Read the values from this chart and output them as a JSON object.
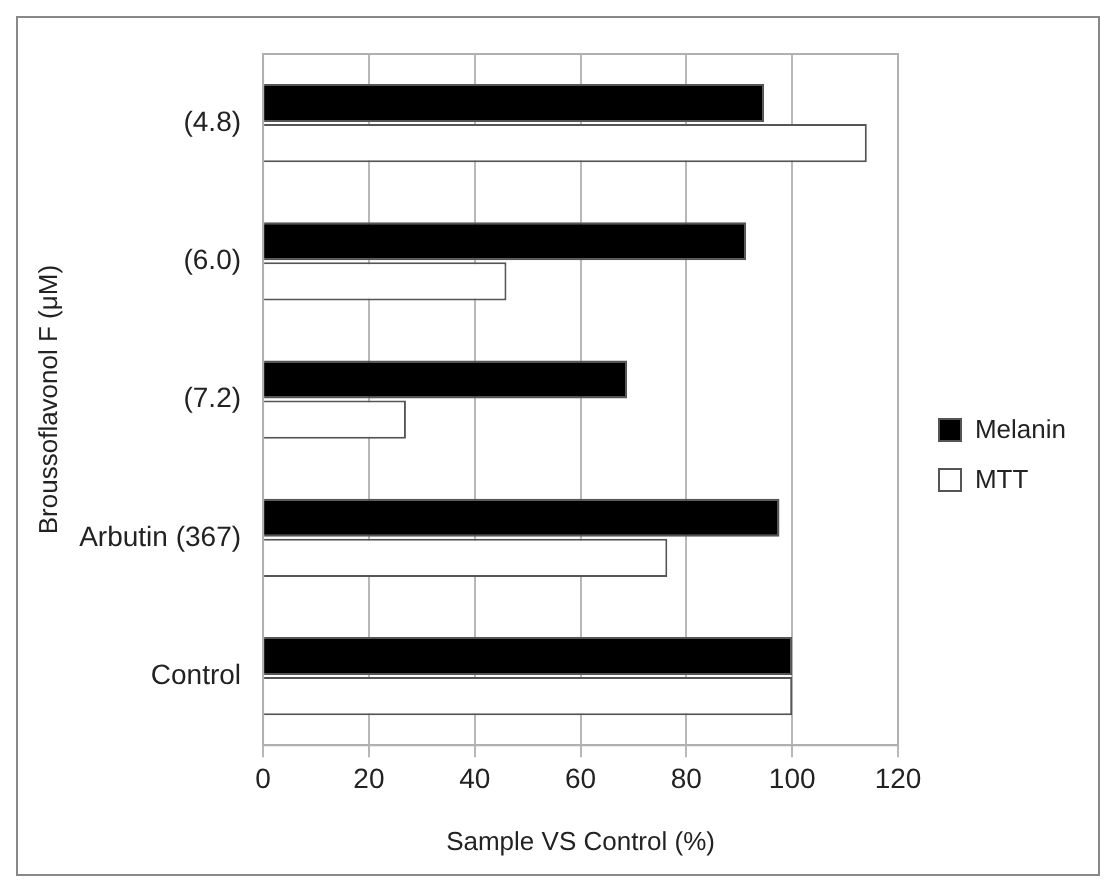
{
  "chart_data": {
    "type": "bar",
    "orientation": "horizontal",
    "xlabel": "Sample VS Control (%)",
    "ylabel": "Broussoflavonol F (μM)",
    "categories": [
      "(4.8)",
      "(6.0)",
      "(7.2)",
      "Arbutin (367)",
      "Control"
    ],
    "series": [
      {
        "name": "Melanin",
        "color": "#000000",
        "values": [
          94.7,
          91.3,
          68.8,
          97.6,
          100
        ]
      },
      {
        "name": "MTT",
        "color": "#ffffff",
        "values": [
          114.1,
          46.0,
          27.0,
          76.4,
          100
        ]
      }
    ],
    "xlim": [
      0,
      120
    ],
    "xticks": [
      0,
      20,
      40,
      60,
      80,
      100,
      120
    ],
    "grid": "x",
    "legend": "right"
  }
}
